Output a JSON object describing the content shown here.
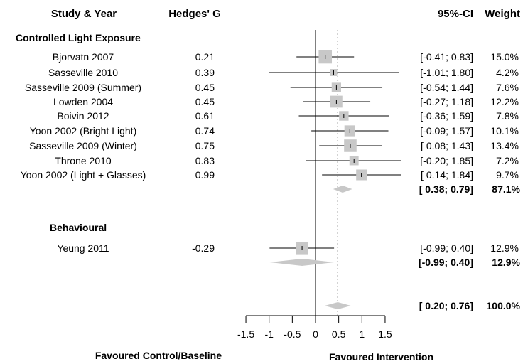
{
  "chart_data": {
    "type": "forest",
    "headers": {
      "study": "Study & Year",
      "effect": "Hedges' G",
      "ci": "95%-CI",
      "weight": "Weight"
    },
    "groups": [
      {
        "name": "Controlled Light Exposure",
        "studies": [
          {
            "study": "Bjorvatn 2007",
            "g_label": "0.21",
            "g": 0.21,
            "lo": -0.41,
            "hi": 0.83,
            "ci": "[-0.41; 0.83]",
            "weight": "15.0%",
            "w": 15.0
          },
          {
            "study": "Sasseville 2010",
            "g_label": "0.39",
            "g": 0.39,
            "lo": -1.01,
            "hi": 1.8,
            "ci": "[-1.01; 1.80]",
            "weight": "4.2%",
            "w": 4.2
          },
          {
            "study": "Sasseville 2009 (Summer)",
            "g_label": "0.45",
            "g": 0.45,
            "lo": -0.54,
            "hi": 1.44,
            "ci": "[-0.54; 1.44]",
            "weight": "7.6%",
            "w": 7.6
          },
          {
            "study": "Lowden 2004",
            "g_label": "0.45",
            "g": 0.45,
            "lo": -0.27,
            "hi": 1.18,
            "ci": "[-0.27; 1.18]",
            "weight": "12.2%",
            "w": 12.2
          },
          {
            "study": "Boivin 2012",
            "g_label": "0.61",
            "g": 0.61,
            "lo": -0.36,
            "hi": 1.59,
            "ci": "[-0.36; 1.59]",
            "weight": "7.8%",
            "w": 7.8
          },
          {
            "study": "Yoon 2002 (Bright Light)",
            "g_label": "0.74",
            "g": 0.74,
            "lo": -0.09,
            "hi": 1.57,
            "ci": "[-0.09; 1.57]",
            "weight": "10.1%",
            "w": 10.1
          },
          {
            "study": "Sasseville 2009 (Winter)",
            "g_label": "0.75",
            "g": 0.75,
            "lo": 0.08,
            "hi": 1.43,
            "ci": "[ 0.08; 1.43]",
            "weight": "13.4%",
            "w": 13.4
          },
          {
            "study": "Throne 2010",
            "g_label": "0.83",
            "g": 0.83,
            "lo": -0.2,
            "hi": 1.85,
            "ci": "[-0.20; 1.85]",
            "weight": "7.2%",
            "w": 7.2
          },
          {
            "study": "Yoon 2002 (Light + Glasses)",
            "g_label": "0.99",
            "g": 0.99,
            "lo": 0.14,
            "hi": 1.84,
            "ci": "[ 0.14; 1.84]",
            "weight": "9.7%",
            "w": 9.7
          }
        ],
        "summary": {
          "g": 0.585,
          "lo": 0.38,
          "hi": 0.79,
          "ci": "[ 0.38; 0.79]",
          "weight": "87.1%"
        }
      },
      {
        "name": "Behavioural",
        "studies": [
          {
            "study": "Yeung 2011",
            "g_label": "-0.29",
            "g": -0.29,
            "lo": -0.99,
            "hi": 0.4,
            "ci": "[-0.99; 0.40]",
            "weight": "12.9%",
            "w": 12.9
          }
        ],
        "summary": {
          "g": -0.29,
          "lo": -0.99,
          "hi": 0.4,
          "ci": "[-0.99; 0.40]",
          "weight": "12.9%"
        }
      }
    ],
    "overall": {
      "g": 0.48,
      "lo": 0.2,
      "hi": 0.76,
      "ci": "[ 0.20; 0.76]",
      "weight": "100.0%"
    },
    "x_ticks": [
      -1.5,
      -1,
      -0.5,
      0,
      0.5,
      1,
      1.5
    ],
    "x_tick_labels": [
      "-1.5",
      "-1",
      "-0.5",
      "0",
      "0.5",
      "1",
      "1.5"
    ],
    "xlim": [
      -1.5,
      1.5
    ],
    "reference_line": 0,
    "pooled_effect_line": 0.48,
    "xlabel_left": "Favoured Control/Baseline",
    "xlabel_right": "Favoured Intervention",
    "colors": {
      "box": "#c8c8c8",
      "diamond": "#c8c8c8",
      "line": "#000000",
      "dotted": "#555555"
    }
  }
}
